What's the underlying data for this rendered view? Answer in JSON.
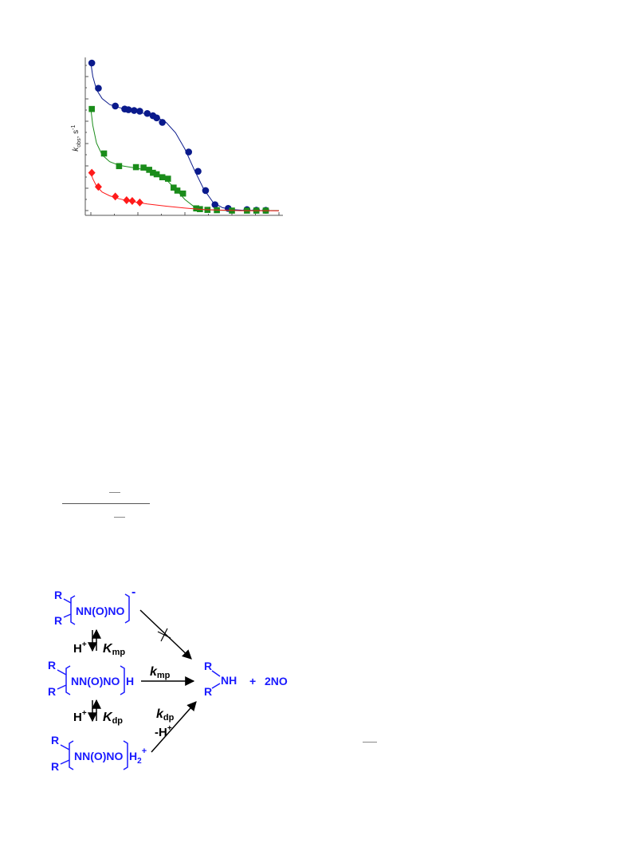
{
  "chart_data": {
    "type": "scatter",
    "ylabel": {
      "main": "k",
      "sub": "obs",
      "unit": ", s",
      "sup": "-1"
    },
    "xlim": [
      0,
      10
    ],
    "ylim": [
      0,
      10
    ],
    "grid": false,
    "series": [
      {
        "color": "#0a1a8c",
        "marker": "circle",
        "x": [
          0.05,
          0.4,
          1.3,
          1.8,
          2.0,
          2.3,
          2.6,
          3.0,
          3.3,
          3.5,
          3.8,
          5.2,
          5.7,
          6.1,
          6.6,
          7.3,
          8.3,
          8.8,
          9.3
        ],
        "y": [
          10.0,
          8.3,
          7.1,
          6.9,
          6.85,
          6.8,
          6.75,
          6.6,
          6.45,
          6.3,
          6.0,
          4.0,
          2.7,
          1.4,
          0.45,
          0.2,
          0.12,
          0.08,
          0.07
        ],
        "curve_x": [
          0,
          0.1,
          0.3,
          0.6,
          1.0,
          1.5,
          2.0,
          2.5,
          3.0,
          3.5,
          4.0,
          4.5,
          5.0,
          5.5,
          6.0,
          6.5,
          7.0,
          7.5,
          8.0,
          9.0,
          10.0
        ],
        "curve_y": [
          10.0,
          9.1,
          8.2,
          7.6,
          7.2,
          7.0,
          6.85,
          6.7,
          6.55,
          6.35,
          6.0,
          5.3,
          4.2,
          2.8,
          1.5,
          0.6,
          0.25,
          0.12,
          0.08,
          0.06,
          0.05
        ]
      },
      {
        "color": "#1a8c1a",
        "marker": "square",
        "x": [
          0.05,
          0.7,
          1.5,
          2.4,
          2.8,
          3.1,
          3.3,
          3.5,
          3.8,
          4.1,
          4.4,
          4.6,
          4.9,
          5.6,
          5.8,
          6.2,
          6.7,
          7.5,
          8.3,
          8.8,
          9.3
        ],
        "y": [
          6.9,
          3.9,
          3.05,
          2.98,
          2.95,
          2.8,
          2.6,
          2.5,
          2.3,
          2.2,
          1.6,
          1.4,
          1.2,
          0.2,
          0.15,
          0.1,
          0.08,
          0.05,
          0.05,
          0.05,
          0.05
        ],
        "curve_x": [
          0,
          0.1,
          0.3,
          0.6,
          1.0,
          1.5,
          2.0,
          2.5,
          3.0,
          3.5,
          4.0,
          4.5,
          5.0,
          5.5,
          6.0,
          7.0,
          8.0,
          9.0,
          10.0
        ],
        "curve_y": [
          6.9,
          5.8,
          4.6,
          3.8,
          3.35,
          3.1,
          3.0,
          2.9,
          2.75,
          2.5,
          2.15,
          1.5,
          0.8,
          0.3,
          0.12,
          0.07,
          0.05,
          0.05,
          0.05
        ]
      },
      {
        "color": "#ff1a1a",
        "marker": "diamond",
        "x": [
          0.05,
          0.4,
          1.3,
          1.9,
          2.2,
          2.6
        ],
        "y": [
          2.6,
          1.65,
          1.0,
          0.75,
          0.7,
          0.6
        ],
        "curve_x": [
          0,
          0.1,
          0.3,
          0.6,
          1.0,
          1.5,
          2.0,
          2.5,
          3.0,
          4.0,
          5.0,
          6.0,
          7.0,
          8.0,
          10.0
        ],
        "curve_y": [
          2.6,
          2.2,
          1.7,
          1.3,
          1.05,
          0.85,
          0.7,
          0.6,
          0.5,
          0.35,
          0.22,
          0.12,
          0.08,
          0.05,
          0.04
        ]
      }
    ]
  },
  "scheme": {
    "r": "R",
    "species_1": "NN(O)NO",
    "charge_1": "-",
    "species_2": "NN(O)NO",
    "suffix_2": "H",
    "species_3": "NN(O)NO",
    "suffix_3": "H",
    "suffix_3_sub": "2",
    "suffix_3_sup": "+",
    "h_plus_1": "H",
    "h_plus_2": "H",
    "plus_sup": "+",
    "k_mp_eq": {
      "main": "K",
      "sub": "mp"
    },
    "k_dp_eq": {
      "main": "K",
      "sub": "dp"
    },
    "k_mp": {
      "main": "k",
      "sub": "mp"
    },
    "k_dp": {
      "main": "k",
      "sub": "dp"
    },
    "minus_h": "-H",
    "product_nh": "NH",
    "plus_sign": "+",
    "product_no": "2NO"
  }
}
